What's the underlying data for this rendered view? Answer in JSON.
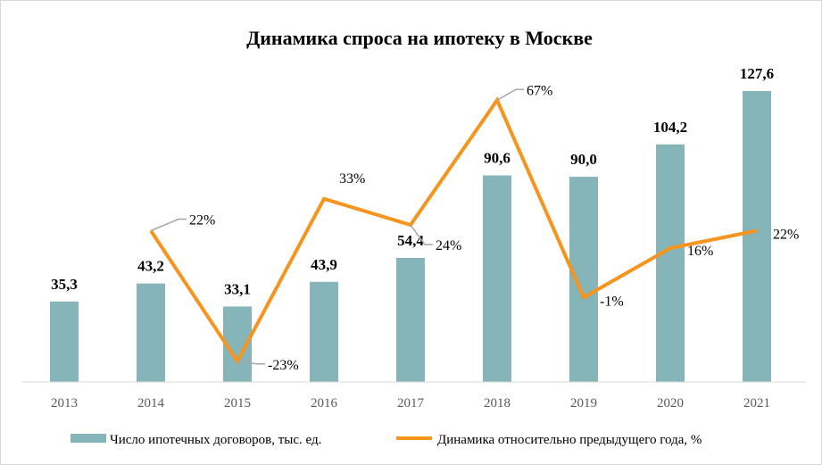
{
  "chart_data": {
    "type": "bar+line",
    "title": "Динамика спроса на ипотеку в Москве",
    "categories": [
      "2013",
      "2014",
      "2015",
      "2016",
      "2017",
      "2018",
      "2019",
      "2020",
      "2021"
    ],
    "series": [
      {
        "name": "Число ипотечных договоров, тыс. ед.",
        "type": "bar",
        "color": "#85B4B9",
        "values": [
          35.3,
          43.2,
          33.1,
          43.9,
          54.4,
          90.6,
          90.0,
          104.2,
          127.6
        ],
        "labels": [
          "35,3",
          "43,2",
          "33,1",
          "43,9",
          "54,4",
          "90,6",
          "90,0",
          "104,2",
          "127,6"
        ]
      },
      {
        "name": "Динамика относительно предыдущего года, %",
        "type": "line",
        "color": "#F7941D",
        "values": [
          null,
          22,
          -23,
          33,
          24,
          67,
          -1,
          16,
          22
        ],
        "labels": [
          "",
          "22%",
          "-23%",
          "33%",
          "24%",
          "67%",
          "-1%",
          "16%",
          "22%"
        ]
      }
    ],
    "legend": "bottom",
    "grid": false
  }
}
